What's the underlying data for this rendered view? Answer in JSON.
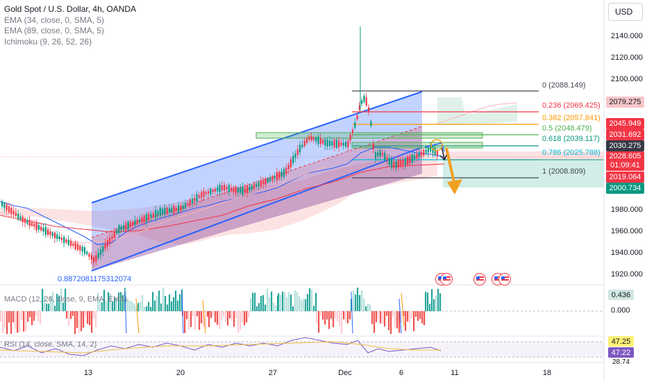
{
  "legend": {
    "title": "Gold Spot / U.S. Dollar, 4h, OANDA",
    "ema1": "EMA (34, close, 0, SMA, 5)",
    "ema2": "EMA (89, close, 0, SMA, 5)",
    "ichimoku": "Ichimoku (9, 26, 52, 26)"
  },
  "currency_button": "USD",
  "y_axis_ticks": [
    "2140.000",
    "2120.000",
    "2100.000",
    "1980.000",
    "1960.000",
    "1940.000",
    "1920.000"
  ],
  "price_tags": [
    {
      "value": "2079.275",
      "color": "#f7c5c8",
      "text_color": "#131722"
    },
    {
      "value": "2045.949",
      "color": "#f23645",
      "text_color": "#ffffff"
    },
    {
      "value": "2031.692",
      "color": "#f23645",
      "text_color": "#ffffff"
    },
    {
      "value": "2030.275",
      "color": "#363a45",
      "text_color": "#ffffff"
    },
    {
      "value": "2028.605",
      "countdown": "01:09:41",
      "color": "#f23645",
      "text_color": "#ffffff"
    },
    {
      "value": "2019.064",
      "color": "#f23645",
      "text_color": "#ffffff"
    },
    {
      "value": "2000.734",
      "color": "#089981",
      "text_color": "#ffffff"
    }
  ],
  "fib_levels": [
    {
      "label": "0 (2088.149)",
      "color": "#434651"
    },
    {
      "label": "0.236 (2069.425)",
      "color": "#f23645"
    },
    {
      "label": "0.382 (2057.841)",
      "color": "#ff9800"
    },
    {
      "label": "0.5 (2048.479)",
      "color": "#4caf50"
    },
    {
      "label": "0.618 (2039.117)",
      "color": "#089981"
    },
    {
      "label": "0.786 (2025.788)",
      "color": "#00bcd4"
    },
    {
      "label": "1 (2008.809)",
      "color": "#434651"
    }
  ],
  "correlation_value": "0.8872081175312074",
  "x_axis_ticks": [
    "13",
    "20",
    "27",
    "Dec",
    "6",
    "11",
    "18"
  ],
  "macd": {
    "label": "MACD (12, 26, close, 9, EMA, EMA)",
    "values": [
      "0.436",
      "0.000"
    ]
  },
  "rsi": {
    "label": "RSI (14, close, SMA, 14, 2)",
    "values": [
      "47.25",
      "47.22",
      "28.74"
    ]
  },
  "colors": {
    "up": "#089981",
    "down": "#f23645",
    "channel_blue": "#2962ff",
    "accent": "#2962ff"
  },
  "icons": [
    "us-flag-icon",
    "us-flag-icon",
    "us-flag-icon",
    "us-flag-icon",
    "us-flag-icon"
  ]
}
